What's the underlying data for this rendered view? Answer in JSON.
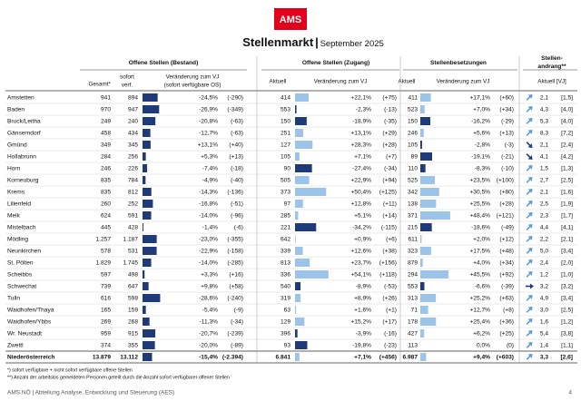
{
  "header": {
    "logo": "AMS",
    "title": "Stellenmarkt",
    "separator": "|",
    "period": "September 2025"
  },
  "table": {
    "groups": [
      "Offene Stellen (Bestand)",
      "Offene Stellen (Zugang)",
      "Stellenbesetzungen",
      [
        "Stellen-",
        "andrang**"
      ]
    ],
    "columns": [
      "Gesamt*",
      [
        "sofort",
        "verf."
      ],
      [
        "Veränderung zum VJ",
        "(sofort verfügbare OS)"
      ],
      "Aktuell",
      "Veränderung zum VJ",
      "Aktuell",
      "Veränderung zum VJ",
      "Aktuell [VJ]"
    ],
    "rows": [
      [
        "Amstetten",
        "941",
        "894",
        {
          "value": -24.5,
          "label": "-24,5%"
        },
        "(-290)",
        "414",
        {
          "value": 22.1,
          "label": "+22,1%"
        },
        "(+75)",
        "411",
        {
          "value": 17.1,
          "label": "+17,1%"
        },
        "(+60)",
        {
          "value": 2.1,
          "label": "2,1"
        },
        {
          "value": 1.5,
          "label": "[1,5]"
        }
      ],
      [
        "Baden",
        "970",
        "947",
        {
          "value": -26.9,
          "label": "-26,9%"
        },
        "(-349)",
        "553",
        {
          "value": -2.3,
          "label": "-2,3%"
        },
        "(-13)",
        "523",
        {
          "value": 7.0,
          "label": "+7,0%"
        },
        "(+34)",
        {
          "value": 4.3,
          "label": "4,3"
        },
        {
          "value": 4.0,
          "label": "[4,0]"
        }
      ],
      [
        "Bruck/Leitha",
        "249",
        "240",
        {
          "value": -20.8,
          "label": "-20,8%"
        },
        "(-63)",
        "150",
        {
          "value": -18.9,
          "label": "-18,9%"
        },
        "(-35)",
        "150",
        {
          "value": -16.2,
          "label": "-16,2%"
        },
        "(-29)",
        {
          "value": 5.3,
          "label": "5,3"
        },
        {
          "value": 4.0,
          "label": "[4,0]"
        }
      ],
      [
        "Gänserndorf",
        "458",
        "434",
        {
          "value": -12.7,
          "label": "-12,7%"
        },
        "(-63)",
        "251",
        {
          "value": 13.1,
          "label": "+13,1%"
        },
        "(+29)",
        "246",
        {
          "value": 5.6,
          "label": "+5,6%"
        },
        "(+13)",
        {
          "value": 8.3,
          "label": "8,3"
        },
        {
          "value": 7.2,
          "label": "[7,2]"
        }
      ],
      [
        "Gmünd",
        "349",
        "345",
        {
          "value": 13.1,
          "label": "+13,1%"
        },
        "(+40)",
        "127",
        {
          "value": 28.3,
          "label": "+28,3%"
        },
        "(+28)",
        "105",
        {
          "value": -2.8,
          "label": "-2,8%"
        },
        "(-3)",
        {
          "value": 2.1,
          "label": "2,1"
        },
        {
          "value": 2.4,
          "label": "[2,4]"
        }
      ],
      [
        "Hollabrunn",
        "284",
        "256",
        {
          "value": 5.3,
          "label": "+5,3%"
        },
        "(+13)",
        "105",
        {
          "value": 7.1,
          "label": "+7,1%"
        },
        "(+7)",
        "89",
        {
          "value": -19.1,
          "label": "-19,1%"
        },
        "(-21)",
        {
          "value": 4.1,
          "label": "4,1"
        },
        {
          "value": 4.2,
          "label": "[4,2]"
        }
      ],
      [
        "Horn",
        "246",
        "226",
        {
          "value": -7.4,
          "label": "-7,4%"
        },
        "(-18)",
        "90",
        {
          "value": -27.4,
          "label": "-27,4%"
        },
        "(-34)",
        "110",
        {
          "value": -8.3,
          "label": "-8,3%"
        },
        "(-10)",
        {
          "value": 1.5,
          "label": "1,5"
        },
        {
          "value": 1.3,
          "label": "[1,3]"
        }
      ],
      [
        "Korneuburg",
        "835",
        "784",
        {
          "value": -4.9,
          "label": "-4,9%"
        },
        "(-40)",
        "505",
        {
          "value": 22.9,
          "label": "+22,9%"
        },
        "(+94)",
        "525",
        {
          "value": 23.5,
          "label": "+23,5%"
        },
        "(+100)",
        {
          "value": 2.7,
          "label": "2,7"
        },
        {
          "value": 2.5,
          "label": "[2,5]"
        }
      ],
      [
        "Krems",
        "835",
        "812",
        {
          "value": -14.3,
          "label": "-14,3%"
        },
        "(-136)",
        "373",
        {
          "value": 50.4,
          "label": "+50,4%"
        },
        "(+125)",
        "342",
        {
          "value": 30.5,
          "label": "+30,5%"
        },
        "(+80)",
        {
          "value": 2.1,
          "label": "2,1"
        },
        {
          "value": 1.6,
          "label": "[1,6]"
        }
      ],
      [
        "Lilienfeld",
        "260",
        "252",
        {
          "value": -16.8,
          "label": "-16,8%"
        },
        "(-51)",
        "97",
        {
          "value": 12.8,
          "label": "+12,8%"
        },
        "(+11)",
        "138",
        {
          "value": 25.5,
          "label": "+25,5%"
        },
        "(+28)",
        {
          "value": 2.5,
          "label": "2,5"
        },
        {
          "value": 1.9,
          "label": "[1,9]"
        }
      ],
      [
        "Melk",
        "624",
        "591",
        {
          "value": -14.0,
          "label": "-14,0%"
        },
        "(-96)",
        "285",
        {
          "value": 5.1,
          "label": "+5,1%"
        },
        "(+14)",
        "371",
        {
          "value": 48.4,
          "label": "+48,4%"
        },
        "(+121)",
        {
          "value": 2.3,
          "label": "2,3"
        },
        {
          "value": 1.7,
          "label": "[1,7]"
        }
      ],
      [
        "Mistelbach",
        "445",
        "428",
        {
          "value": -1.4,
          "label": "-1,4%"
        },
        "(-6)",
        "221",
        {
          "value": -34.2,
          "label": "-34,2%"
        },
        "(-115)",
        "215",
        {
          "value": -18.6,
          "label": "-18,6%"
        },
        "(-49)",
        {
          "value": 4.4,
          "label": "4,4"
        },
        {
          "value": 4.1,
          "label": "[4,1]"
        }
      ],
      [
        "Mödling",
        "1.257",
        "1.187",
        {
          "value": -23.0,
          "label": "-23,0%"
        },
        "(-355)",
        "642",
        {
          "value": 0.9,
          "label": "+0,9%"
        },
        "(+6)",
        "611",
        {
          "value": 2.0,
          "label": "+2,0%"
        },
        "(+12)",
        {
          "value": 2.2,
          "label": "2,2"
        },
        {
          "value": 2.1,
          "label": "[2,1]"
        }
      ],
      [
        "Neunkirchen",
        "578",
        "531",
        {
          "value": -22.9,
          "label": "-22,9%"
        },
        "(-158)",
        "339",
        {
          "value": 12.6,
          "label": "+12,6%"
        },
        "(+38)",
        "323",
        {
          "value": 17.5,
          "label": "+17,5%"
        },
        "(+48)",
        {
          "value": 5.0,
          "label": "5,0"
        },
        {
          "value": 3.4,
          "label": "[3,4]"
        }
      ],
      [
        "St. Pölten",
        "1.829",
        "1.745",
        {
          "value": -14.0,
          "label": "-14,0%"
        },
        "(-285)",
        "813",
        {
          "value": 23.7,
          "label": "+23,7%"
        },
        "(+156)",
        "879",
        {
          "value": 4.0,
          "label": "+4,0%"
        },
        "(+34)",
        {
          "value": 2.4,
          "label": "2,4"
        },
        {
          "value": 2.0,
          "label": "[2,0]"
        }
      ],
      [
        "Scheibbs",
        "597",
        "498",
        {
          "value": 3.3,
          "label": "+3,3%"
        },
        "(+16)",
        "336",
        {
          "value": 54.1,
          "label": "+54,1%"
        },
        "(+118)",
        "294",
        {
          "value": 45.5,
          "label": "+45,5%"
        },
        "(+92)",
        {
          "value": 1.2,
          "label": "1,2"
        },
        {
          "value": 1.0,
          "label": "[1,0]"
        }
      ],
      [
        "Schwechat",
        "739",
        "647",
        {
          "value": 9.8,
          "label": "+9,8%"
        },
        "(+58)",
        "540",
        {
          "value": -8.9,
          "label": "-8,9%"
        },
        "(-53)",
        "553",
        {
          "value": -6.6,
          "label": "-6,6%"
        },
        "(-39)",
        {
          "value": 3.2,
          "label": "3,2"
        },
        {
          "value": 3.2,
          "label": "[3,2]"
        }
      ],
      [
        "Tulln",
        "616",
        "598",
        {
          "value": -28.6,
          "label": "-28,6%"
        },
        "(-240)",
        "319",
        {
          "value": 8.9,
          "label": "+8,9%"
        },
        "(+26)",
        "313",
        {
          "value": 25.2,
          "label": "+25,2%"
        },
        "(+63)",
        {
          "value": 4.9,
          "label": "4,9"
        },
        {
          "value": 3.4,
          "label": "[3,4]"
        }
      ],
      [
        "Waidhofen/Thaya",
        "165",
        "159",
        {
          "value": -5.4,
          "label": "-5,4%"
        },
        "(-9)",
        "63",
        {
          "value": 1.6,
          "label": "+1,6%"
        },
        "(+1)",
        "71",
        {
          "value": 12.7,
          "label": "+12,7%"
        },
        "(+8)",
        {
          "value": 3.0,
          "label": "3,0"
        },
        {
          "value": 2.5,
          "label": "[2,5]"
        }
      ],
      [
        "Waidhofen/Ybbs",
        "269",
        "268",
        {
          "value": -11.3,
          "label": "-11,3%"
        },
        "(-34)",
        "129",
        {
          "value": 15.2,
          "label": "+15,2%"
        },
        "(+17)",
        "178",
        {
          "value": 25.4,
          "label": "+25,4%"
        },
        "(+36)",
        {
          "value": 1.6,
          "label": "1,6"
        },
        {
          "value": 1.2,
          "label": "[1,2]"
        }
      ],
      [
        "Wr. Neustadt",
        "959",
        "915",
        {
          "value": -20.7,
          "label": "-20,7%"
        },
        "(-239)",
        "396",
        {
          "value": -3.9,
          "label": "-3,9%"
        },
        "(-16)",
        "427",
        {
          "value": 6.2,
          "label": "+6,2%"
        },
        "(+25)",
        {
          "value": 5.4,
          "label": "5,4"
        },
        {
          "value": 3.8,
          "label": "[3,8]"
        }
      ],
      [
        "Zwettl",
        "374",
        "355",
        {
          "value": -20.0,
          "label": "-20,0%"
        },
        "(-89)",
        "93",
        {
          "value": -19.8,
          "label": "-19,8%"
        },
        "(-23)",
        "113",
        {
          "value": 0.0,
          "label": "0,0%"
        },
        "(0)",
        {
          "value": 1.4,
          "label": "1,4"
        },
        {
          "value": 1.1,
          "label": "[1,1]"
        }
      ],
      [
        "Niederösterreich",
        "13.879",
        "13.112",
        {
          "value": -15.4,
          "label": "-15,4%"
        },
        "(-2.394)",
        "6.841",
        {
          "value": 7.1,
          "label": "+7,1%"
        },
        "(+456)",
        "6.987",
        {
          "value": 9.4,
          "label": "+9,4%"
        },
        "(+603)",
        {
          "value": 3.3,
          "label": "3,3"
        },
        {
          "value": 2.6,
          "label": "[2,6]"
        }
      ]
    ]
  },
  "footnotes": [
    "*) sofort verfügbare + nicht sofort verfügbare offene Stellen",
    "**) Anzahl der arbeitslos gemeldeten Personen geteilt durch die Anzahl sofort verfügbarer offener Stellen"
  ],
  "footer": {
    "text": "AMS.NÖ | Abteilung Analyse, Entwicklung und Steuerung (AES)",
    "page": "4"
  }
}
